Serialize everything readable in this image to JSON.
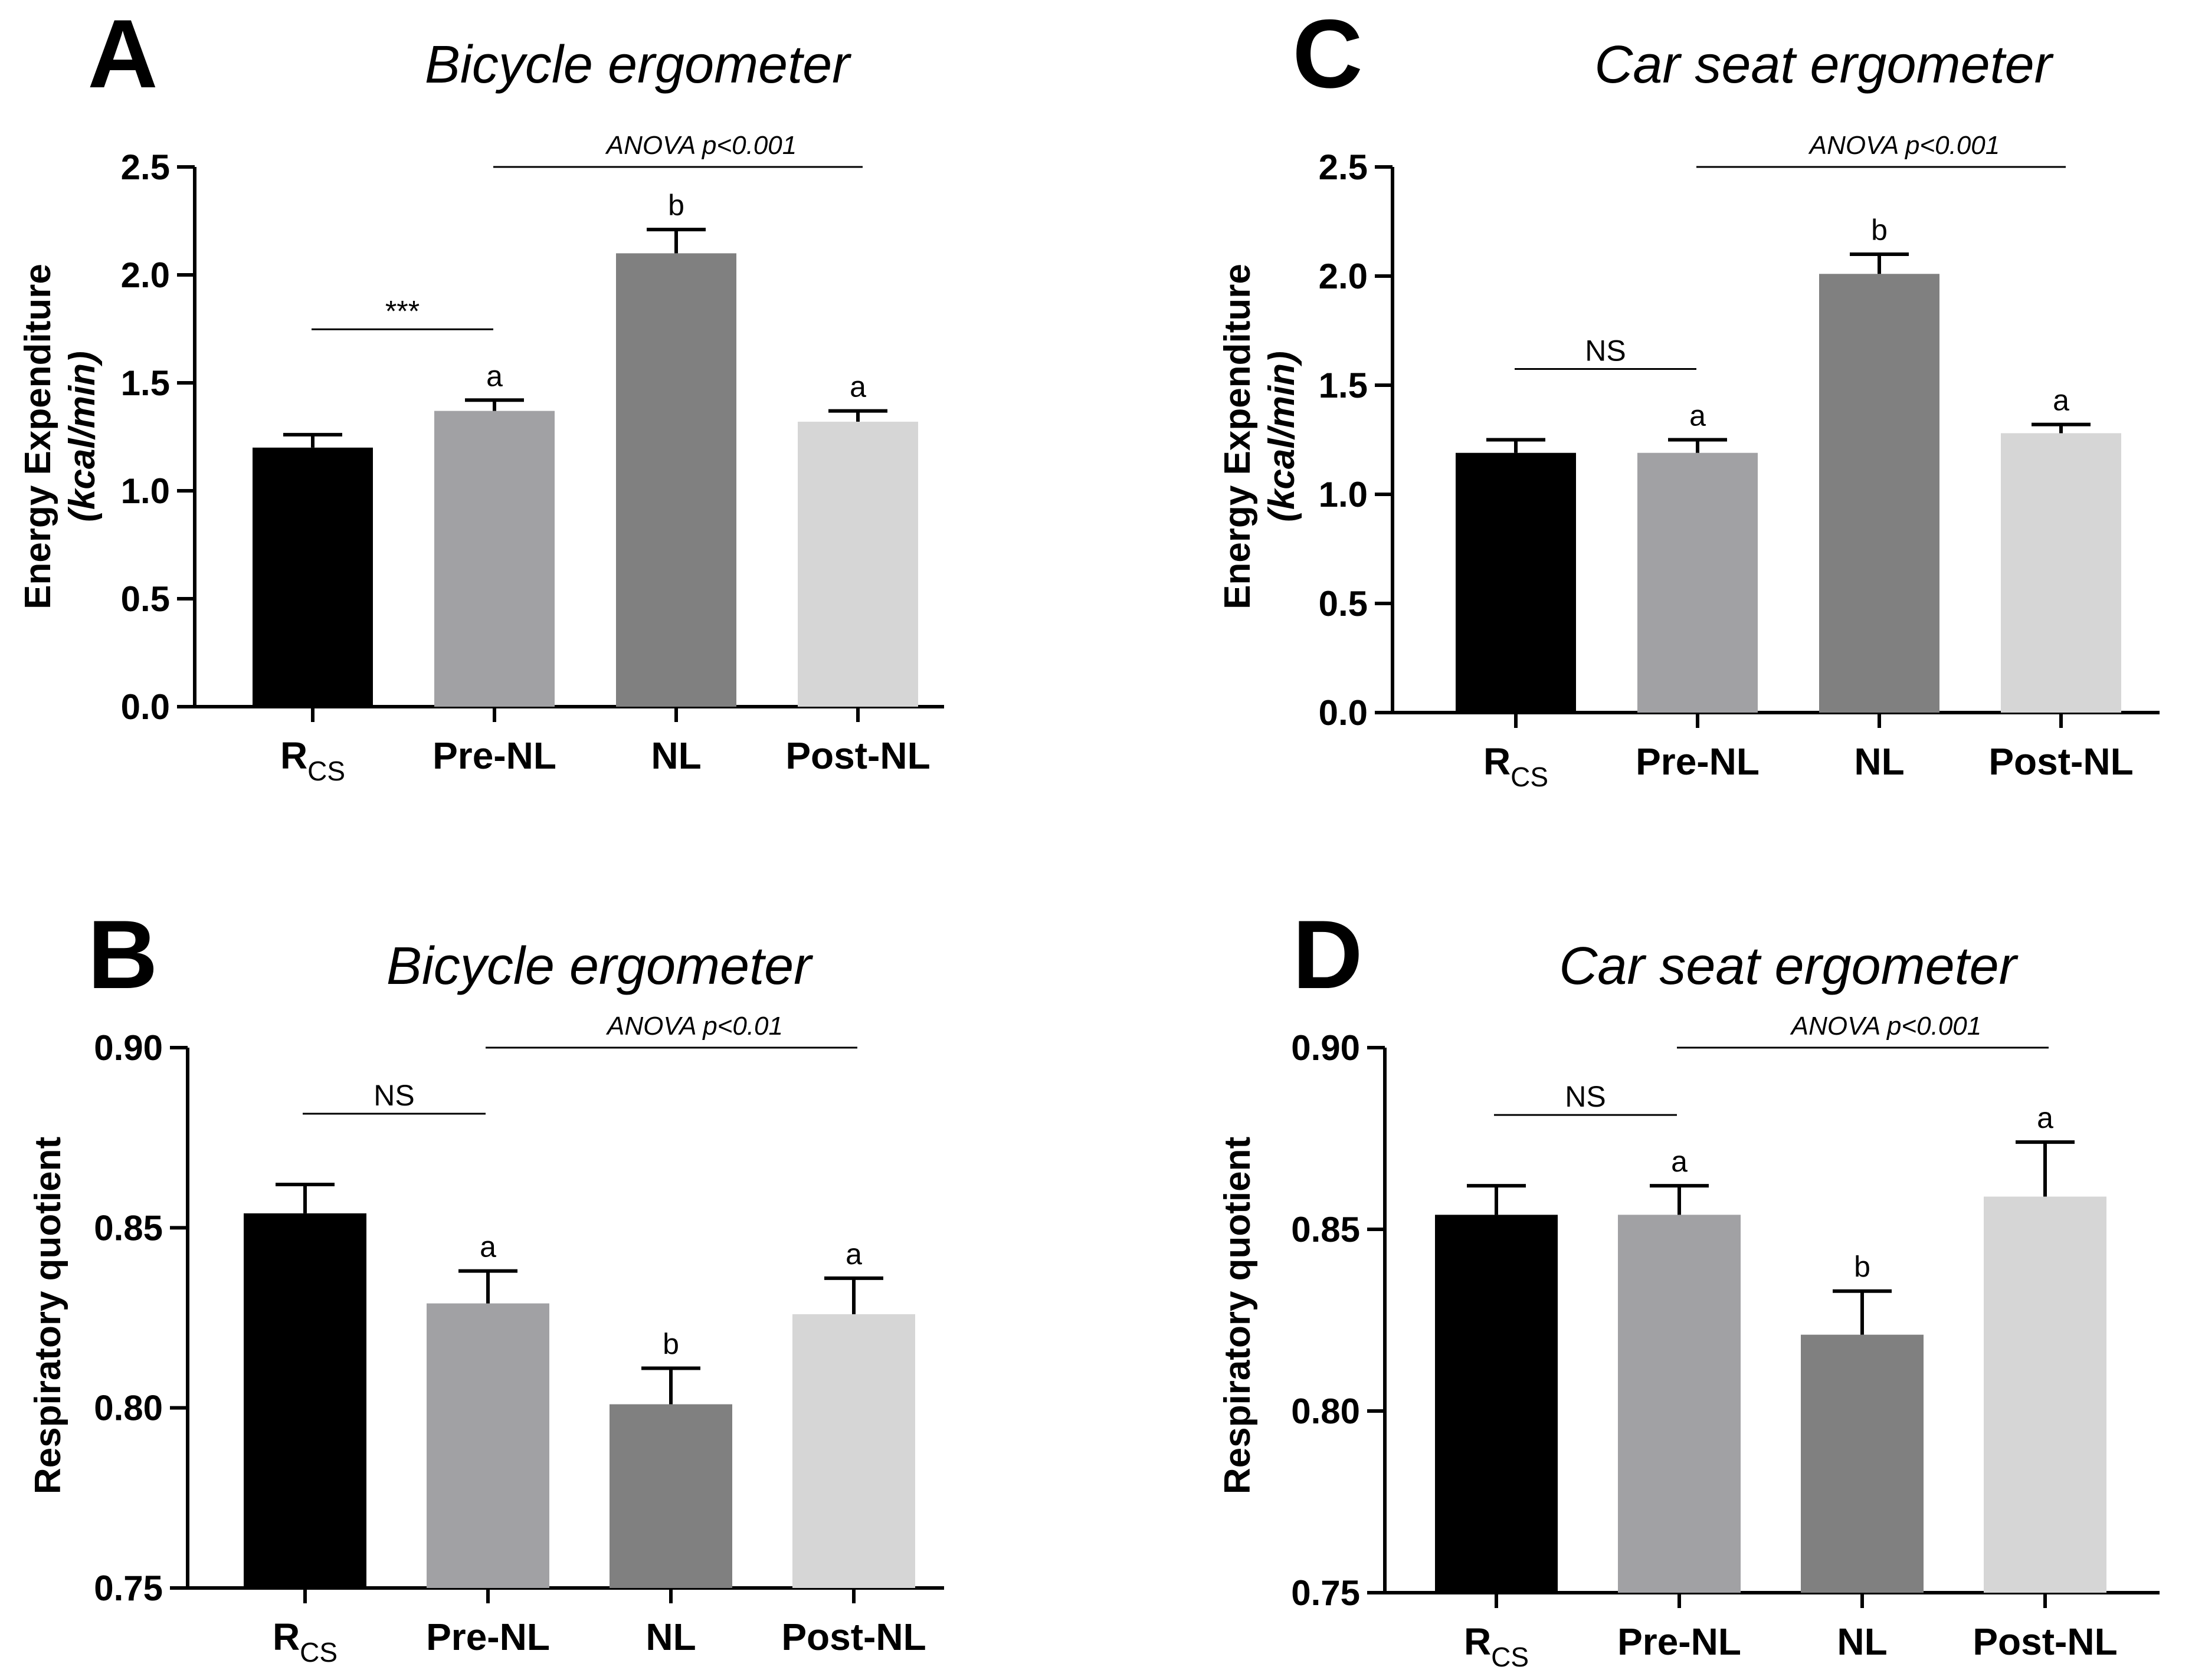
{
  "colors": {
    "RCS": "#000000",
    "Pre-NL": "#a1a1a4",
    "NL": "#808080",
    "Post-NL": "#d6d6d6",
    "axis": "#000000"
  },
  "chart_data": [
    {
      "panel": "A",
      "type": "bar",
      "title": "Bicycle ergometer",
      "ylabel_line1": "Energy Expenditure",
      "ylabel_line2": "(kcal/min)",
      "ylim": [
        0,
        2.5
      ],
      "yticks": [
        "0.0",
        "0.5",
        "1.0",
        "1.5",
        "2.0",
        "2.5"
      ],
      "categories": [
        {
          "main": "R",
          "sub": "CS"
        },
        {
          "main": "Pre-NL",
          "sub": ""
        },
        {
          "main": "NL",
          "sub": ""
        },
        {
          "main": "Post-NL",
          "sub": ""
        }
      ],
      "values": [
        1.2,
        1.37,
        2.1,
        1.32
      ],
      "errors": [
        0.06,
        0.05,
        0.11,
        0.05
      ],
      "bar_labels": [
        "",
        "a",
        "b",
        "a"
      ],
      "comparison": {
        "label": "***",
        "from": 0,
        "to": 1
      },
      "anova": {
        "label": "ANOVA p<0.001",
        "from": 1,
        "to": 3
      }
    },
    {
      "panel": "C",
      "type": "bar",
      "title": "Car seat ergometer",
      "ylabel_line1": "Energy Expenditure",
      "ylabel_line2": "(kcal/min)",
      "ylim": [
        0,
        2.5
      ],
      "yticks": [
        "0.0",
        "0.5",
        "1.0",
        "1.5",
        "2.0",
        "2.5"
      ],
      "categories": [
        {
          "main": "R",
          "sub": "CS"
        },
        {
          "main": "Pre-NL",
          "sub": ""
        },
        {
          "main": "NL",
          "sub": ""
        },
        {
          "main": "Post-NL",
          "sub": ""
        }
      ],
      "values": [
        1.19,
        1.19,
        2.01,
        1.28
      ],
      "errors": [
        0.06,
        0.06,
        0.09,
        0.04
      ],
      "bar_labels": [
        "",
        "a",
        "b",
        "a"
      ],
      "comparison": {
        "label": "NS",
        "from": 0,
        "to": 1
      },
      "anova": {
        "label": "ANOVA p<0.001",
        "from": 1,
        "to": 3
      }
    },
    {
      "panel": "B",
      "type": "bar",
      "title": "Bicycle ergometer",
      "ylabel_line1": "Respiratory quotient",
      "ylabel_line2": "",
      "ylim": [
        0.75,
        0.9
      ],
      "yticks": [
        "0.75",
        "0.80",
        "0.85",
        "0.90"
      ],
      "categories": [
        {
          "main": "R",
          "sub": "CS"
        },
        {
          "main": "Pre-NL",
          "sub": ""
        },
        {
          "main": "NL",
          "sub": ""
        },
        {
          "main": "Post-NL",
          "sub": ""
        }
      ],
      "values": [
        0.854,
        0.829,
        0.801,
        0.826
      ],
      "errors": [
        0.008,
        0.009,
        0.01,
        0.01
      ],
      "bar_labels": [
        "",
        "a",
        "b",
        "a"
      ],
      "comparison": {
        "label": "NS",
        "from": 0,
        "to": 1
      },
      "anova": {
        "label": "ANOVA p<0.01",
        "from": 1,
        "to": 3
      }
    },
    {
      "panel": "D",
      "type": "bar",
      "title": "Car seat ergometer",
      "ylabel_line1": "Respiratory quotient",
      "ylabel_line2": "",
      "ylim": [
        0.75,
        0.9
      ],
      "yticks": [
        "0.75",
        "0.80",
        "0.85",
        "0.90"
      ],
      "categories": [
        {
          "main": "R",
          "sub": "CS"
        },
        {
          "main": "Pre-NL",
          "sub": ""
        },
        {
          "main": "NL",
          "sub": ""
        },
        {
          "main": "Post-NL",
          "sub": ""
        }
      ],
      "values": [
        0.854,
        0.854,
        0.821,
        0.859
      ],
      "errors": [
        0.008,
        0.008,
        0.012,
        0.015
      ],
      "bar_labels": [
        "",
        "a",
        "b",
        "a"
      ],
      "comparison": {
        "label": "NS",
        "from": 0,
        "to": 1
      },
      "anova": {
        "label": "ANOVA p<0.001",
        "from": 1,
        "to": 3
      }
    }
  ]
}
